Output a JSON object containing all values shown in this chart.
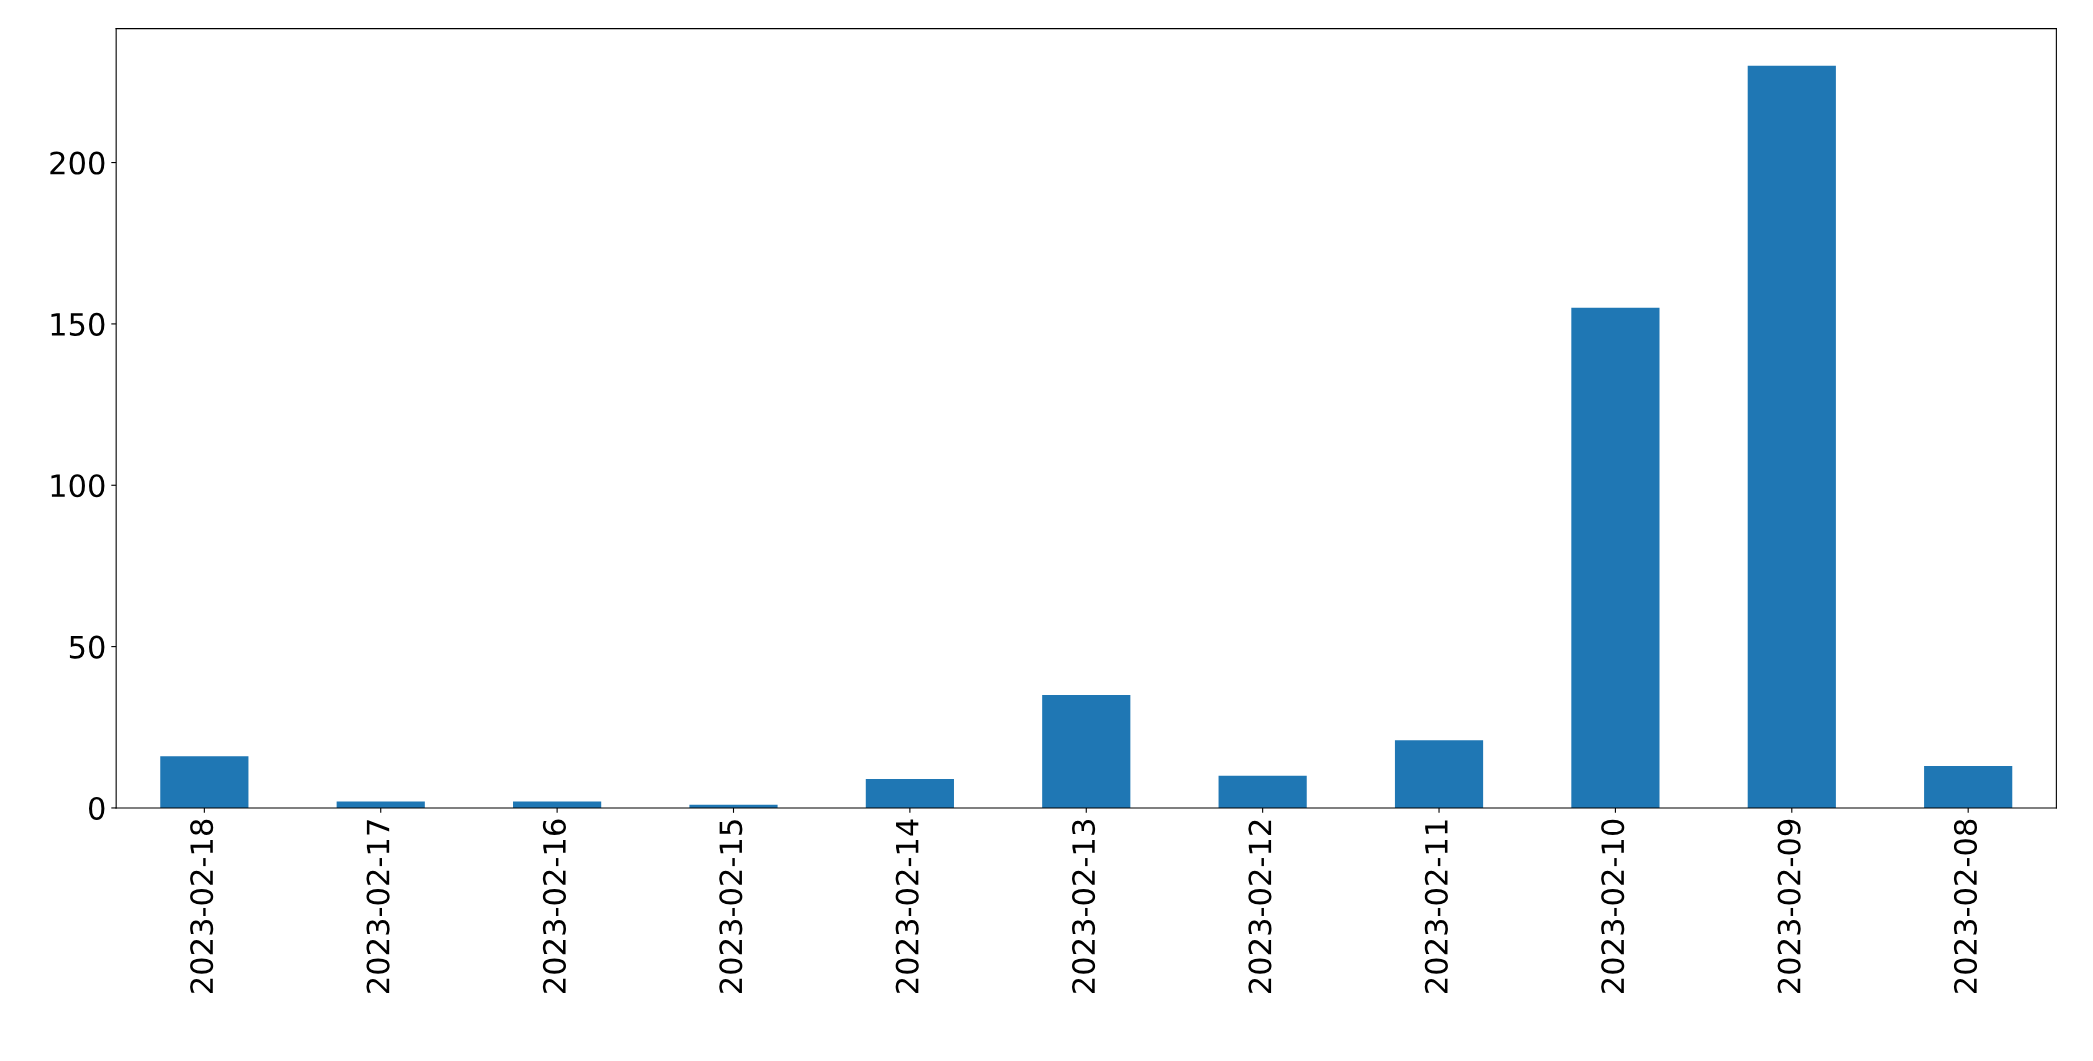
{
  "chart_data": {
    "type": "bar",
    "categories": [
      "2023-02-18",
      "2023-02-17",
      "2023-02-16",
      "2023-02-15",
      "2023-02-14",
      "2023-02-13",
      "2023-02-12",
      "2023-02-11",
      "2023-02-10",
      "2023-02-09",
      "2023-02-08"
    ],
    "values": [
      16,
      2,
      2,
      1,
      9,
      35,
      10,
      21,
      155,
      230,
      13
    ],
    "color": "#1f77b4",
    "ylim": [
      0,
      241.5
    ],
    "yticks": [
      0,
      50,
      100,
      150,
      200
    ],
    "grid": false
  }
}
